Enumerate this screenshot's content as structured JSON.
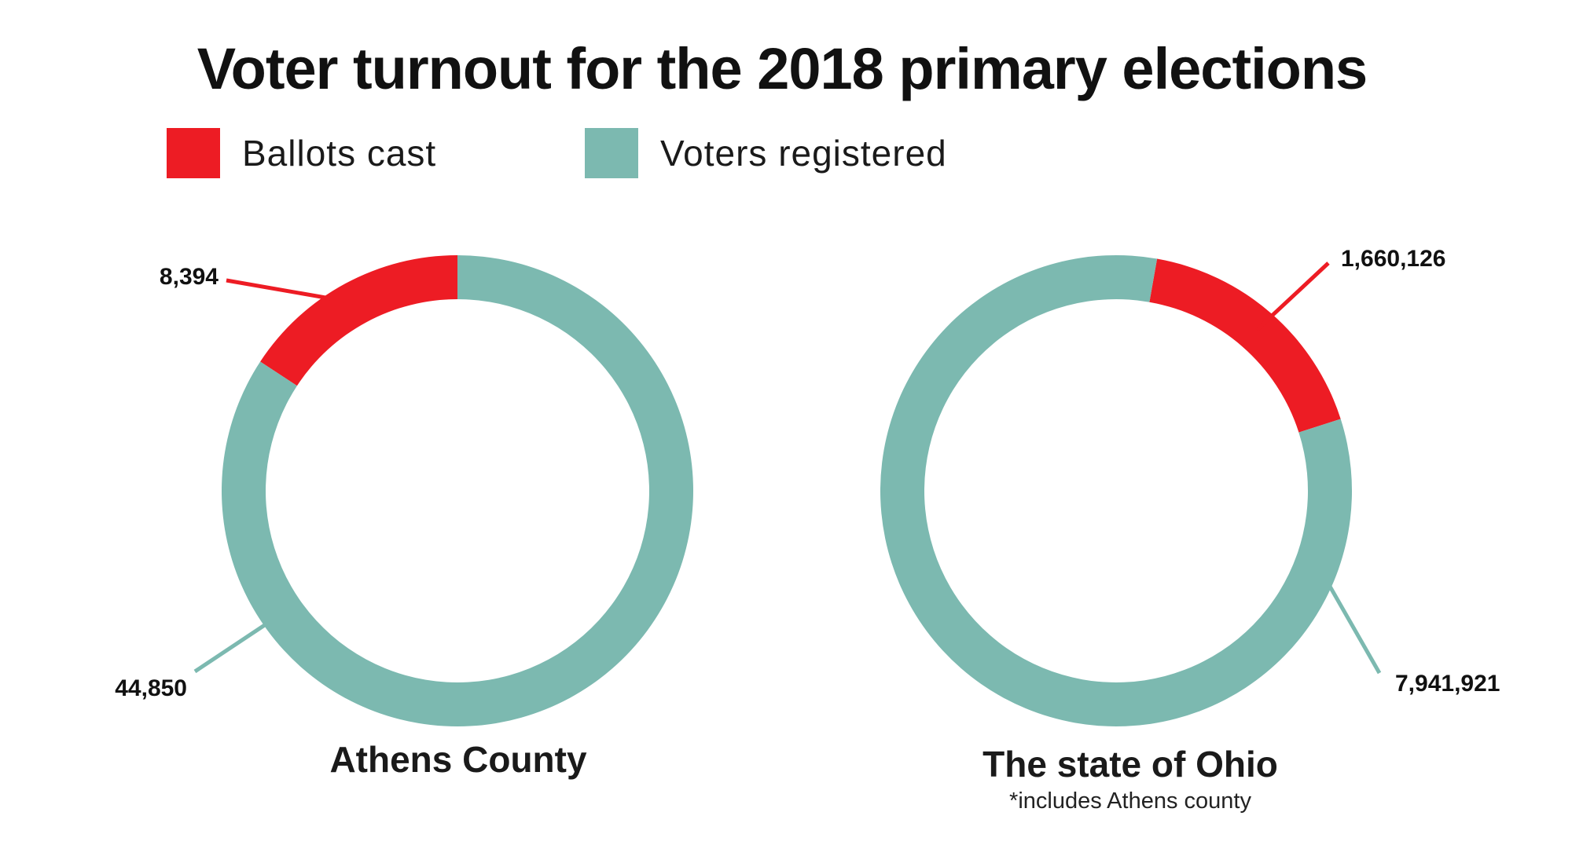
{
  "title": "Voter turnout for the 2018 primary elections",
  "legend": [
    {
      "label": "Ballots cast",
      "color": "#ed1c24"
    },
    {
      "label": "Voters registered",
      "color": "#7cb9b0"
    }
  ],
  "chart_data": [
    {
      "type": "pie",
      "donut": true,
      "name": "Athens County",
      "note": "",
      "segments": [
        {
          "label": "Ballots cast",
          "value": 8394,
          "display": "8,394",
          "color": "#ed1c24"
        },
        {
          "label": "Voters registered",
          "value": 44850,
          "display": "44,850",
          "color": "#7cb9b0"
        }
      ]
    },
    {
      "type": "pie",
      "donut": true,
      "name": "The state of Ohio",
      "note": "*includes Athens county",
      "segments": [
        {
          "label": "Ballots cast",
          "value": 1660126,
          "display": "1,660,126",
          "color": "#ed1c24"
        },
        {
          "label": "Voters registered",
          "value": 7941921,
          "display": "7,941,921",
          "color": "#7cb9b0"
        }
      ]
    }
  ]
}
